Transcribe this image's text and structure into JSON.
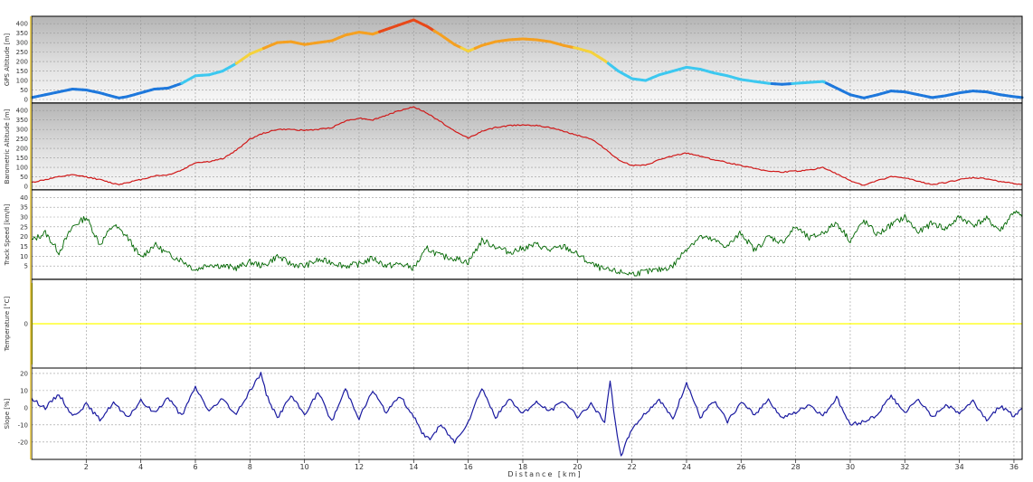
{
  "x_axis": {
    "label": "Distance [km]",
    "min": 0,
    "max": 36.3,
    "ticks": [
      "2",
      "4",
      "6",
      "8",
      "10",
      "12",
      "14",
      "16",
      "18",
      "20",
      "22",
      "24",
      "26",
      "28",
      "30",
      "32",
      "34",
      "36"
    ]
  },
  "colors": {
    "gps_low": "#1e78dc",
    "gps_mid1": "#3cc8f0",
    "gps_mid2": "#f5d23c",
    "gps_high1": "#f5a020",
    "gps_high2": "#e84818",
    "baro": "#d01818",
    "speed": "#006600",
    "temperature": "#ffff00",
    "slope": "#1a1aa0",
    "frame": "#000000"
  },
  "chart_data": [
    {
      "type": "line",
      "ylabel": "GPS Altitude [m]",
      "ylim": [
        0,
        420
      ],
      "yticks": [
        "0",
        "50",
        "100",
        "150",
        "200",
        "250",
        "300",
        "350",
        "400"
      ],
      "series": [
        {
          "x": [
            0,
            0.5,
            1,
            1.5,
            2,
            2.5,
            3,
            3.2,
            3.5,
            4,
            4.5,
            5,
            5.5,
            6,
            6.5,
            7,
            7.5,
            8,
            8.5,
            9,
            9.5,
            10,
            10.5,
            11,
            11.5,
            12,
            12.5,
            13,
            13.5,
            14,
            14.5,
            15,
            15.5,
            16,
            16.5,
            17,
            17.5,
            18,
            18.5,
            19,
            19.5,
            20,
            20.5,
            21,
            21.5,
            22,
            22.5,
            23,
            23.5,
            24,
            24.5,
            25,
            25.5,
            26,
            26.5,
            27,
            27.5,
            28,
            28.5,
            29,
            29.5,
            30,
            30.5,
            31,
            31.5,
            32,
            32.5,
            33,
            33.5,
            34,
            34.5,
            35,
            35.5,
            36,
            36.3
          ],
          "values": [
            10,
            25,
            40,
            55,
            50,
            35,
            15,
            8,
            15,
            35,
            55,
            60,
            85,
            125,
            130,
            150,
            190,
            240,
            270,
            300,
            305,
            290,
            300,
            310,
            340,
            355,
            345,
            370,
            395,
            420,
            385,
            340,
            290,
            255,
            285,
            305,
            315,
            320,
            315,
            305,
            285,
            270,
            250,
            205,
            150,
            110,
            100,
            130,
            150,
            170,
            160,
            140,
            125,
            105,
            95,
            85,
            80,
            85,
            90,
            95,
            60,
            25,
            8,
            25,
            45,
            40,
            25,
            10,
            20,
            35,
            45,
            40,
            25,
            15,
            10
          ]
        }
      ]
    },
    {
      "type": "line",
      "ylabel": "Barometric Altitude [m]",
      "ylim": [
        0,
        420
      ],
      "yticks": [
        "0",
        "50",
        "100",
        "150",
        "200",
        "250",
        "300",
        "350",
        "400"
      ],
      "series": [
        {
          "x": [
            0,
            0.5,
            1,
            1.5,
            2,
            2.5,
            3,
            3.2,
            3.5,
            4,
            4.5,
            5,
            5.5,
            6,
            6.5,
            7,
            7.5,
            8,
            8.5,
            9,
            9.5,
            10,
            10.5,
            11,
            11.5,
            12,
            12.5,
            13,
            13.5,
            14,
            14.5,
            15,
            15.5,
            16,
            16.5,
            17,
            17.5,
            18,
            18.5,
            19,
            19.5,
            20,
            20.5,
            21,
            21.5,
            22,
            22.5,
            23,
            23.5,
            24,
            24.5,
            25,
            25.5,
            26,
            26.5,
            27,
            27.5,
            28,
            28.5,
            29,
            29.5,
            30,
            30.5,
            31,
            31.5,
            32,
            32.5,
            33,
            33.5,
            34,
            34.5,
            35,
            35.5,
            36,
            36.3
          ],
          "values": [
            20,
            35,
            50,
            60,
            50,
            35,
            15,
            10,
            20,
            35,
            55,
            60,
            85,
            125,
            130,
            145,
            190,
            250,
            280,
            300,
            300,
            295,
            300,
            310,
            345,
            360,
            350,
            375,
            400,
            420,
            385,
            340,
            290,
            255,
            290,
            310,
            320,
            325,
            320,
            310,
            290,
            270,
            250,
            200,
            140,
            110,
            110,
            140,
            160,
            175,
            160,
            140,
            125,
            110,
            95,
            80,
            75,
            80,
            85,
            100,
            65,
            30,
            5,
            30,
            50,
            45,
            25,
            10,
            20,
            35,
            45,
            40,
            25,
            15,
            10
          ]
        }
      ]
    },
    {
      "type": "line",
      "ylabel": "Track Speed [km/h]",
      "ylim": [
        0,
        42
      ],
      "yticks": [
        "5",
        "10",
        "15",
        "20",
        "25",
        "30",
        "35",
        "40"
      ],
      "series": [
        {
          "x": [
            0,
            0.5,
            1,
            1.5,
            2,
            2.5,
            3,
            3.5,
            4,
            4.5,
            5,
            5.5,
            6,
            6.5,
            7,
            7.5,
            8,
            8.5,
            9,
            9.5,
            10,
            10.5,
            11,
            11.5,
            12,
            12.5,
            13,
            13.5,
            14,
            14.5,
            15,
            15.5,
            16,
            16.5,
            17,
            17.5,
            18,
            18.5,
            19,
            19.5,
            20,
            20.5,
            21,
            21.5,
            22,
            22.5,
            23,
            23.5,
            24,
            24.5,
            25,
            25.5,
            26,
            26.5,
            27,
            27.5,
            28,
            28.5,
            29,
            29.5,
            30,
            30.5,
            31,
            31.5,
            32,
            32.5,
            33,
            33.5,
            34,
            34.5,
            35,
            35.5,
            36,
            36.3
          ],
          "values": [
            18,
            22,
            12,
            25,
            30,
            16,
            26,
            20,
            9,
            16,
            11,
            8,
            3,
            6,
            5,
            4,
            7,
            5,
            10,
            6,
            5,
            8,
            7,
            5,
            6,
            9,
            5,
            6,
            4,
            14,
            10,
            9,
            7,
            18,
            15,
            12,
            14,
            16,
            13,
            15,
            11,
            6,
            3,
            2,
            1,
            2,
            3,
            5,
            14,
            20,
            18,
            15,
            22,
            13,
            20,
            17,
            25,
            19,
            22,
            27,
            18,
            28,
            21,
            26,
            30,
            22,
            27,
            24,
            30,
            26,
            29,
            23,
            33,
            30
          ]
        }
      ]
    },
    {
      "type": "line",
      "ylabel": "Temperature [°C]",
      "ylim": [
        -5,
        5
      ],
      "yticks": [
        "0"
      ],
      "series": [
        {
          "x": [
            0,
            36.3
          ],
          "values": [
            0,
            0
          ]
        }
      ]
    },
    {
      "type": "line",
      "ylabel": "Slope [%]",
      "ylim": [
        -28,
        21
      ],
      "yticks": [
        "-20",
        "-10",
        "0",
        "10",
        "20"
      ],
      "series": [
        {
          "x": [
            0,
            0.5,
            1,
            1.5,
            2,
            2.5,
            3,
            3.5,
            4,
            4.5,
            5,
            5.5,
            6,
            6.5,
            7,
            7.5,
            8,
            8.2,
            8.4,
            8.6,
            9,
            9.5,
            10,
            10.5,
            11,
            11.5,
            12,
            12.5,
            13,
            13.5,
            14,
            14.3,
            14.6,
            15,
            15.5,
            16,
            16.5,
            17,
            17.5,
            18,
            18.5,
            19,
            19.5,
            20,
            20.5,
            21,
            21.2,
            21.4,
            21.6,
            22,
            22.5,
            23,
            23.5,
            24,
            24.5,
            25,
            25.5,
            26,
            26.5,
            27,
            27.5,
            28,
            28.5,
            29,
            29.5,
            30,
            30.5,
            31,
            31.5,
            32,
            32.5,
            33,
            33.5,
            34,
            34.5,
            35,
            35.5,
            36,
            36.3
          ],
          "values": [
            5,
            0,
            8,
            -5,
            2,
            -7,
            3,
            -6,
            4,
            -3,
            6,
            -5,
            12,
            -2,
            5,
            -4,
            10,
            15,
            20,
            8,
            -6,
            7,
            -4,
            9,
            -8,
            11,
            -6,
            10,
            -3,
            7,
            -5,
            -15,
            -18,
            -10,
            -20,
            -8,
            12,
            -6,
            5,
            -3,
            3,
            -2,
            4,
            -5,
            2,
            -8,
            15,
            -10,
            -28,
            -12,
            -3,
            5,
            -7,
            15,
            -6,
            4,
            -8,
            3,
            -4,
            5,
            -6,
            -3,
            2,
            -5,
            6,
            -10,
            -8,
            -4,
            7,
            -3,
            5,
            -6,
            2,
            -3,
            4,
            -7,
            1,
            -5,
            0
          ]
        }
      ]
    }
  ]
}
